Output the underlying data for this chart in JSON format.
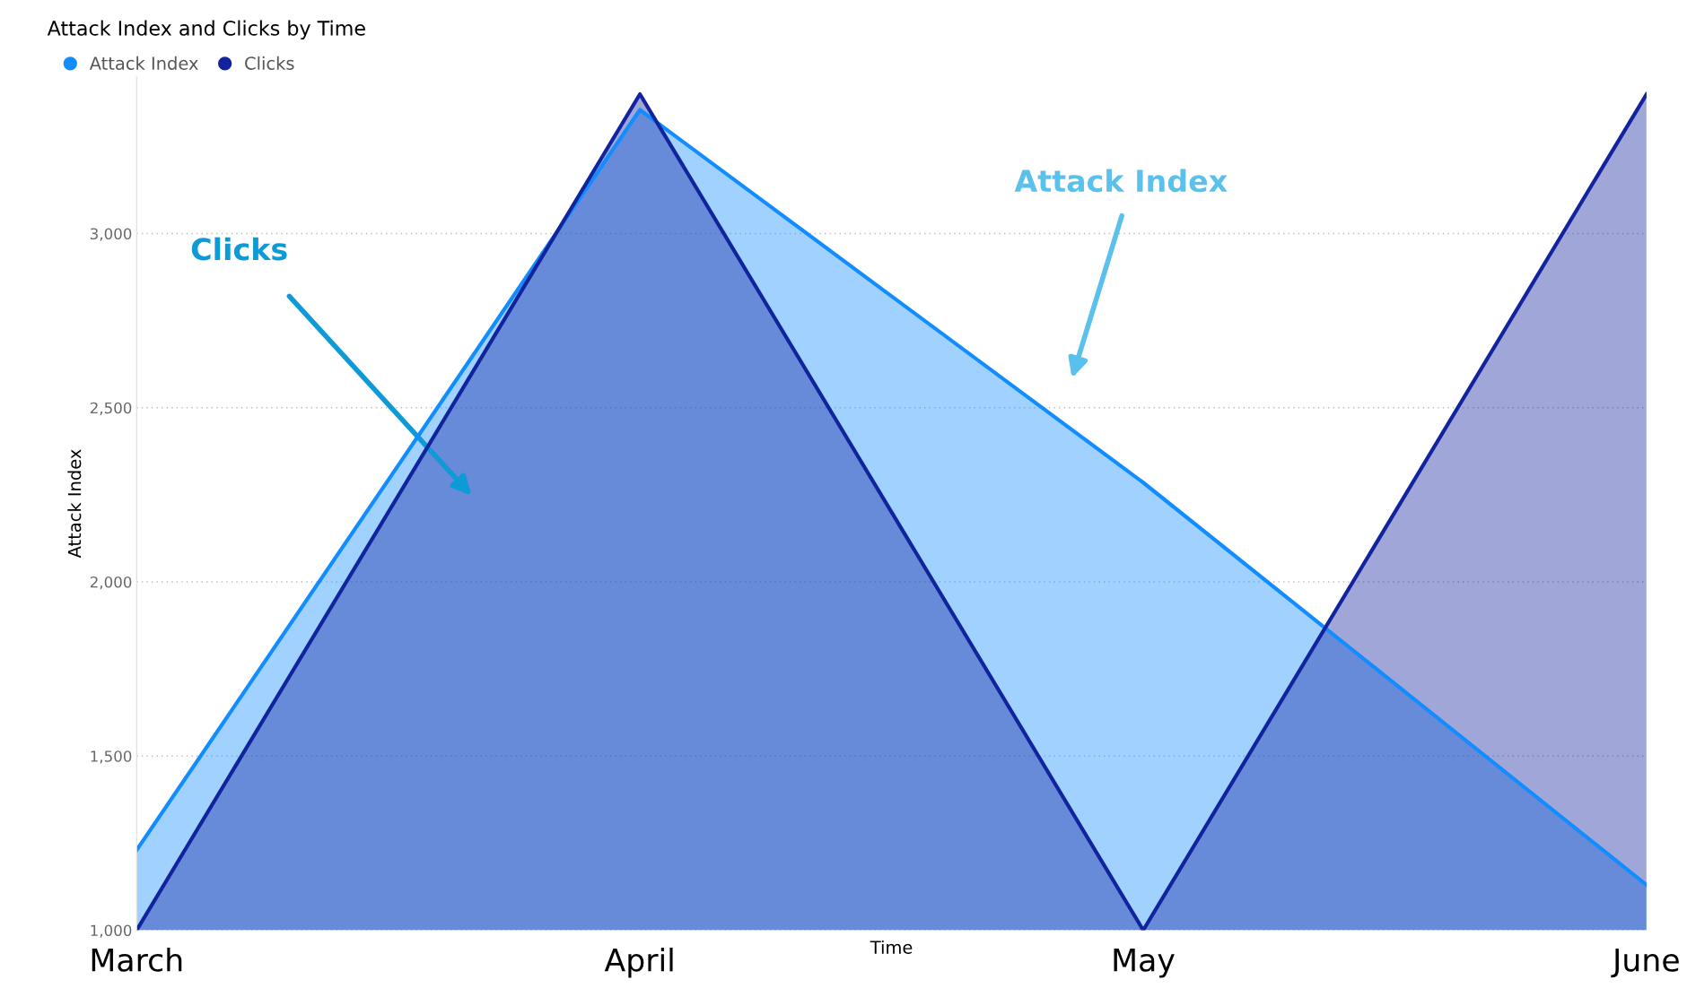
{
  "chart_data": {
    "type": "area",
    "title": "Attack Index and Clicks by Time",
    "xlabel": "Time",
    "ylabel": "Attack Index",
    "categories": [
      "March",
      "April",
      "May",
      "June"
    ],
    "series": [
      {
        "name": "Attack Index",
        "color": "#118dff",
        "values": [
          1230,
          3355,
          2285,
          1130
        ]
      },
      {
        "name": "Clicks",
        "color": "#12239e",
        "values": [
          1000,
          3400,
          1000,
          3400
        ]
      }
    ],
    "ylim": [
      1000,
      3450
    ],
    "yticks": [
      {
        "value": 1000,
        "label": "1,000"
      },
      {
        "value": 1500,
        "label": "1,500"
      },
      {
        "value": 2000,
        "label": "2,000"
      },
      {
        "value": 2500,
        "label": "2,500"
      },
      {
        "value": 3000,
        "label": "3,000"
      }
    ],
    "grid": "y",
    "legend": "top left",
    "marker": "none",
    "line_style": "solid",
    "annotations": [
      "Clicks",
      "Attack Index"
    ]
  }
}
